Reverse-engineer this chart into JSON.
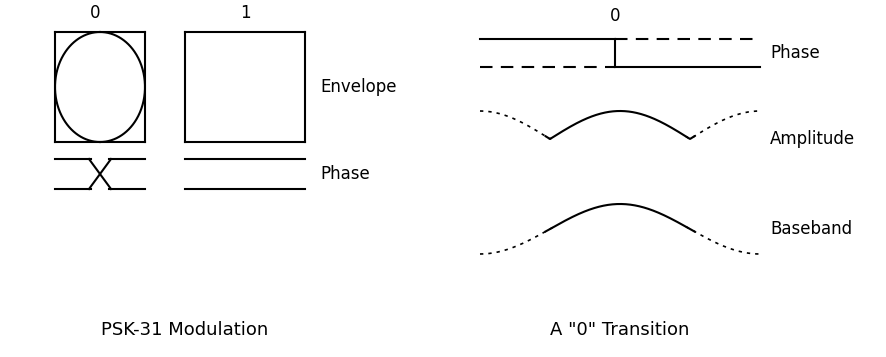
{
  "title_left": "PSK-31 Modulation",
  "title_right": "A \"0\" Transition",
  "label_envelope": "Envelope",
  "label_phase_left": "Phase",
  "label_phase_right": "Phase",
  "label_amplitude": "Amplitude",
  "label_baseband": "Baseband",
  "label_0_left": "0",
  "label_1_left": "1",
  "label_0_right": "0",
  "bg_color": "#ffffff",
  "line_color": "#000000",
  "fontsize_label": 12,
  "fontsize_title": 13,
  "lw": 1.5
}
